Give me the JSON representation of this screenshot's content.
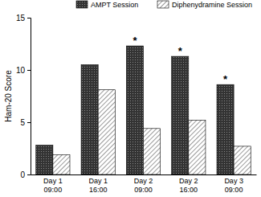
{
  "chart_data": {
    "type": "bar",
    "y_label": "Ham-20 Score",
    "categories": [
      "Day 1\n09:00",
      "Day 1\n16:00",
      "Day 2\n09:00",
      "Day 2\n16:00",
      "Day 3\n09:00"
    ],
    "series": [
      {
        "name": "AMPT Session",
        "color": "#333333",
        "values": [
          2.8,
          10.5,
          12.3,
          11.3,
          8.6
        ]
      },
      {
        "name": "Diphenydramine Session",
        "color": "#555555",
        "values": [
          1.9,
          8.1,
          4.4,
          5.2,
          2.7
        ]
      }
    ],
    "annotations": [
      {
        "text": "*",
        "category": "Day 2\n09:00",
        "series": "AMPT Session"
      },
      {
        "text": "*",
        "category": "Day 2\n16:00",
        "series": "AMPT Session"
      },
      {
        "text": "*",
        "category": "Day 3\n09:00",
        "series": "AMPT Session"
      }
    ],
    "ylim": [
      0,
      15
    ],
    "yticks": [
      0,
      5,
      10,
      15
    ],
    "grid": false,
    "legend": "top"
  }
}
